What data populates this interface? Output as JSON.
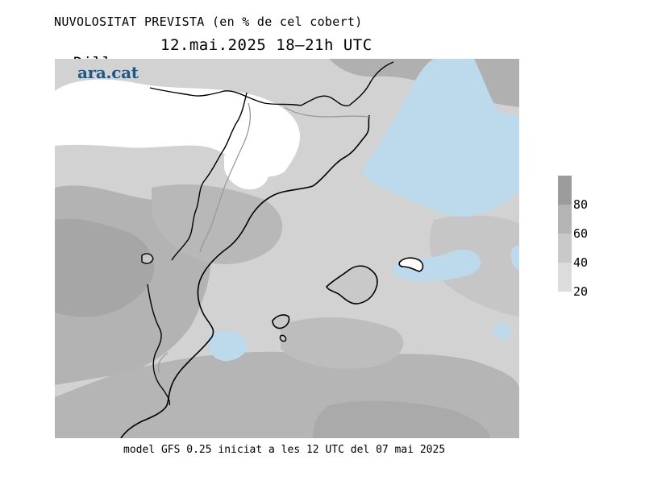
{
  "title": "NUVOLOSITAT PREVISTA (en % de cel cobert)",
  "subtitle": {
    "day": "Dilluns",
    "datetime": "12.mai.2025 18–21h UTC"
  },
  "logo": "ara.cat",
  "footer": "model GFS 0.25 iniciat a les 12 UTC del 07 mai 2025",
  "legend": {
    "labels": [
      "80",
      "60",
      "40",
      "20"
    ],
    "colors": [
      "#9c9c9c",
      "#b4b4b4",
      "#c9c9c9",
      "#dcdcdc"
    ],
    "ocean_clear_color": "#bcdaec"
  },
  "map_colors": {
    "clear": "#ffffff",
    "light": "#d9d9d9",
    "medium": "#c4c4c4",
    "dark": "#a9a9a9",
    "darkest": "#959595",
    "low_cloud_water": "#bcdaec"
  }
}
